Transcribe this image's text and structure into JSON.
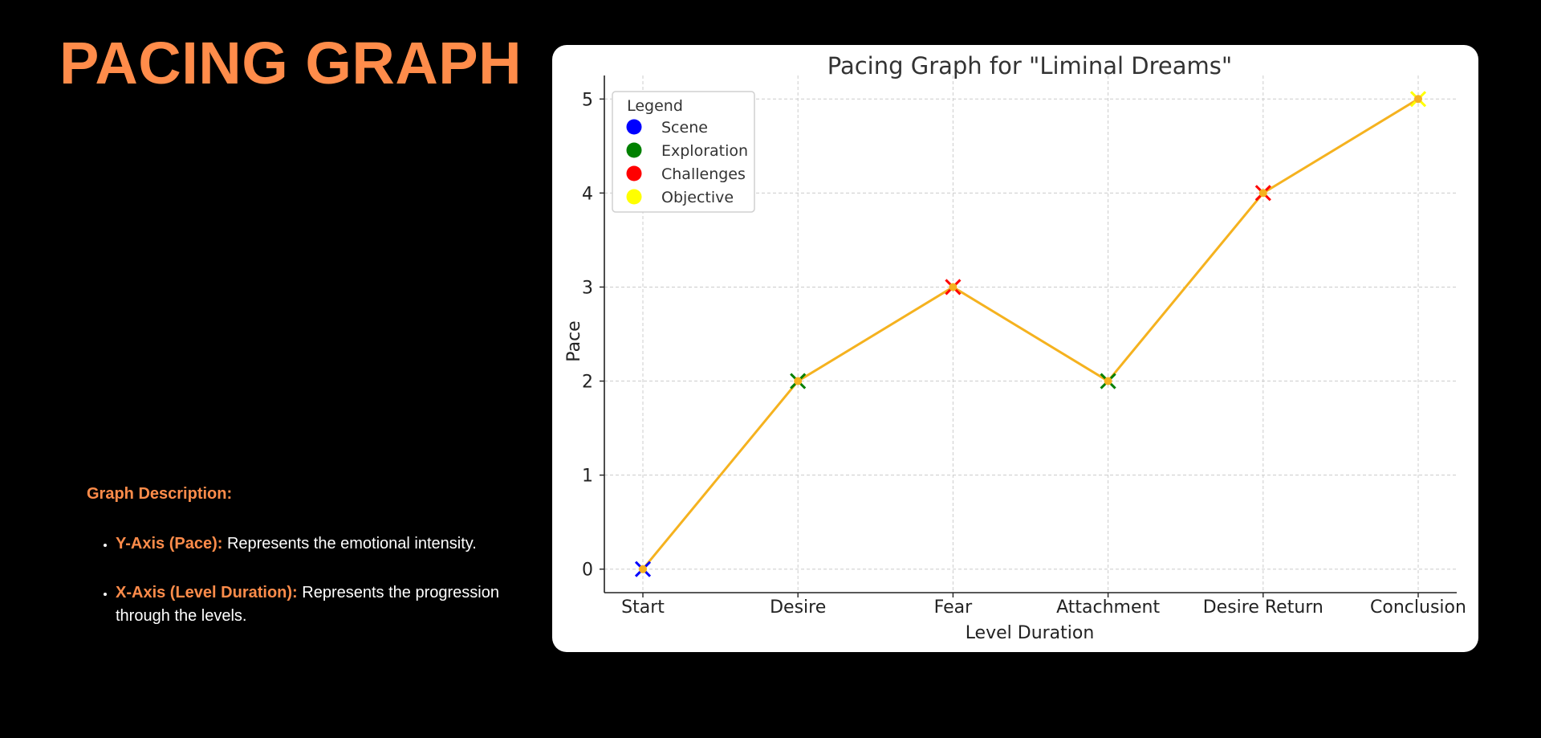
{
  "page": {
    "title": "PACING GRAPH",
    "accent_color": "#ff8c4a"
  },
  "description": {
    "heading": "Graph Description:",
    "items": [
      {
        "term": "Y-Axis (Pace):",
        "text": " Represents the emotional intensity."
      },
      {
        "term": "X-Axis (Level Duration):",
        "text": " Represents the progression through the levels."
      }
    ]
  },
  "chart_data": {
    "type": "line",
    "title": "Pacing Graph for \"Liminal Dreams\"",
    "xlabel": "Level Duration",
    "ylabel": "Pace",
    "categories": [
      "Start",
      "Desire",
      "Fear",
      "Attachment",
      "Desire Return",
      "Conclusion"
    ],
    "values": [
      0,
      2,
      3,
      2,
      4,
      5
    ],
    "point_types": [
      "Scene",
      "Exploration",
      "Challenges",
      "Exploration",
      "Challenges",
      "Objective"
    ],
    "ylim": [
      -0.25,
      5.25
    ],
    "yticks": [
      0,
      1,
      2,
      3,
      4,
      5
    ],
    "grid": true,
    "line_color": "#f5b21f",
    "legend": {
      "title": "Legend",
      "placement": "top-left",
      "entries": [
        {
          "name": "Scene",
          "color": "#0000ff"
        },
        {
          "name": "Exploration",
          "color": "#008000"
        },
        {
          "name": "Challenges",
          "color": "#ff0000"
        },
        {
          "name": "Objective",
          "color": "#ffff00"
        }
      ]
    }
  }
}
